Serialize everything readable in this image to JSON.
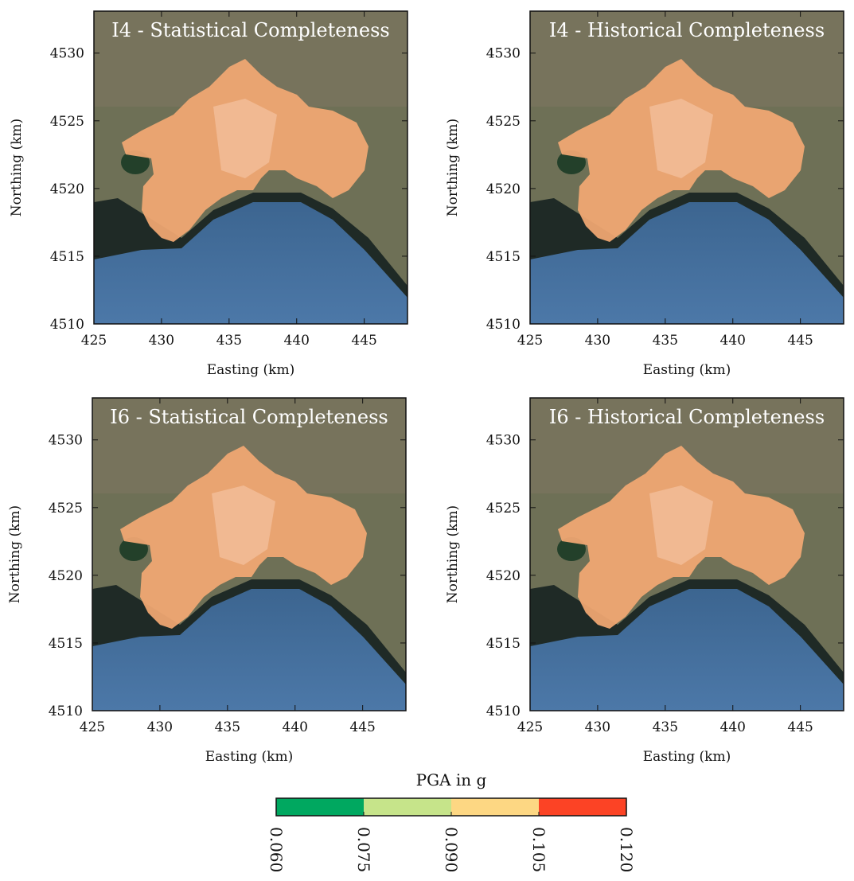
{
  "panels": [
    {
      "title": "I4 - Statistical Completeness",
      "xlabel": "Easting (km)",
      "ylabel": "Northing (km)",
      "xlim": [
        425,
        448.2
      ],
      "ylim": [
        4510,
        4533.1
      ],
      "xticks": [
        425,
        430,
        435,
        440,
        445
      ],
      "yticks": [
        4510,
        4515,
        4520,
        4525,
        4530
      ]
    },
    {
      "title": "I4 - Historical Completeness",
      "xlabel": "Easting (km)",
      "ylabel": "Northing (km)",
      "xlim": [
        425,
        448.2
      ],
      "ylim": [
        4510,
        4533.1
      ],
      "xticks": [
        425,
        430,
        435,
        440,
        445
      ],
      "yticks": [
        4510,
        4515,
        4520,
        4525,
        4530
      ]
    },
    {
      "title": "I6 - Statistical Completeness",
      "xlabel": "Easting (km)",
      "ylabel": "Northing (km)",
      "xlim": [
        425,
        448.2
      ],
      "ylim": [
        4510,
        4533.1
      ],
      "xticks": [
        425,
        430,
        435,
        440,
        445
      ],
      "yticks": [
        4510,
        4515,
        4520,
        4525,
        4530
      ]
    },
    {
      "title": "I6 - Historical Completeness",
      "xlabel": "Easting (km)",
      "ylabel": "Northing (km)",
      "xlim": [
        425,
        448.2
      ],
      "ylim": [
        4510,
        4533.1
      ],
      "xticks": [
        425,
        430,
        435,
        440,
        445
      ],
      "yticks": [
        4510,
        4515,
        4520,
        4525,
        4530
      ]
    }
  ],
  "colorbar": {
    "label": "PGA in g",
    "lim": [
      0.06,
      0.12
    ],
    "ticks": [
      {
        "value": 0.06,
        "label": "0.060"
      },
      {
        "value": 0.075,
        "label": "0.075"
      },
      {
        "value": 0.09,
        "label": "0.090"
      },
      {
        "value": 0.105,
        "label": "0.105"
      },
      {
        "value": 0.12,
        "label": "0.120"
      }
    ],
    "colors": [
      "#00a860",
      "#c6e48a",
      "#fdd783",
      "#fc4325"
    ]
  }
}
